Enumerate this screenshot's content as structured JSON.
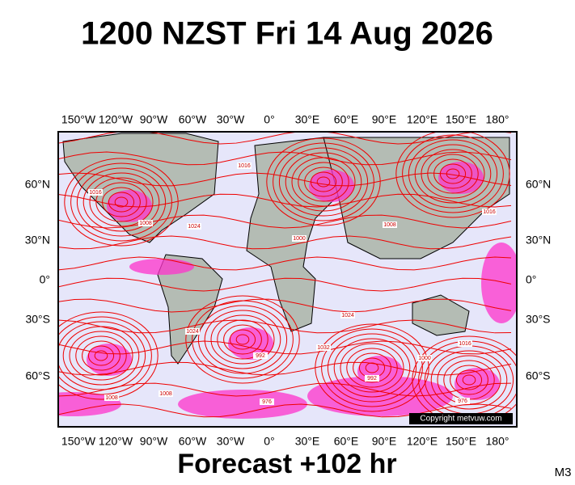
{
  "title": "1200 NZST Fri 14 Aug 2026",
  "map": {
    "lon_labels": [
      "150°W",
      "120°W",
      "90°W",
      "60°W",
      "30°W",
      "0°",
      "30°E",
      "60°E",
      "90°E",
      "120°E",
      "150°E",
      "180°"
    ],
    "lat_labels": [
      "60°N",
      "30°N",
      "0°",
      "30°S",
      "60°S"
    ],
    "isobar_labels": [
      "1016",
      "1008",
      "1024",
      "1016",
      "1000",
      "1008",
      "1016",
      "1024",
      "992",
      "1032",
      "976",
      "1008",
      "992",
      "1000",
      "1016",
      "976",
      "1008",
      "1024"
    ],
    "copyright": "Copyright metvuw.com"
  },
  "footer": {
    "forecast": "Forecast +102 hr",
    "model": "M3"
  }
}
